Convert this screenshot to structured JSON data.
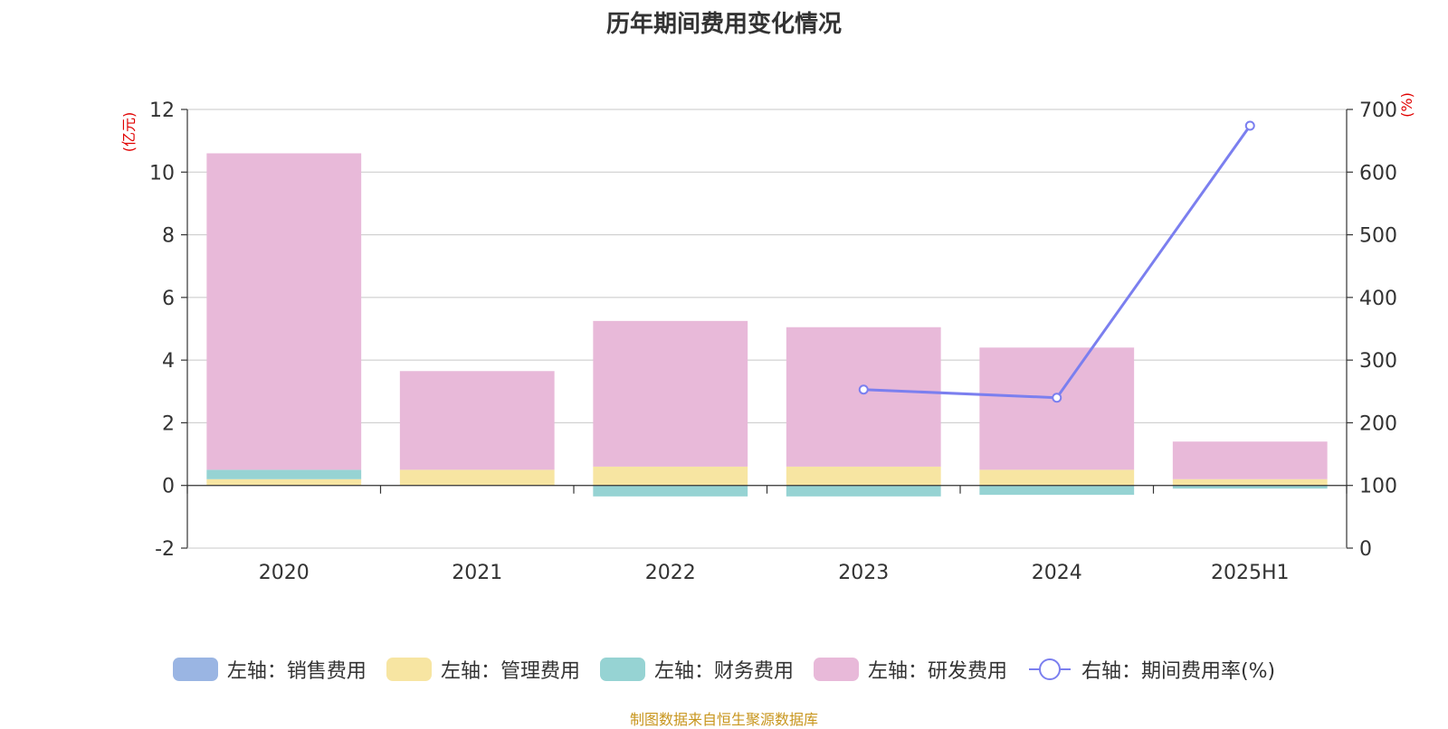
{
  "title": "历年期间费用变化情况",
  "source": "制图数据来自恒生聚源数据库",
  "left_axis_unit": "(亿元)",
  "right_axis_unit": "(%)",
  "colors": {
    "sales": "#9ab5e3",
    "admin": "#f7e5a2",
    "finance": "#96d3d3",
    "rd": "#e8b9d9",
    "rate": "#7b7fef"
  },
  "legend": [
    {
      "label": "左轴：销售费用",
      "type": "bar",
      "color": "#9ab5e3"
    },
    {
      "label": "左轴：管理费用",
      "type": "bar",
      "color": "#f7e5a2"
    },
    {
      "label": "左轴：财务费用",
      "type": "bar",
      "color": "#96d3d3"
    },
    {
      "label": "左轴：研发费用",
      "type": "bar",
      "color": "#e8b9d9"
    },
    {
      "label": "右轴：期间费用率(%)",
      "type": "line",
      "color": "#7b7fef"
    }
  ],
  "chart_data": {
    "type": "bar",
    "stacked": true,
    "categories": [
      "2020",
      "2021",
      "2022",
      "2023",
      "2024",
      "2025H1"
    ],
    "series": [
      {
        "name": "左轴：销售费用",
        "axis": "left",
        "values": [
          0.0,
          0.0,
          0.0,
          0.0,
          0.0,
          0.0
        ]
      },
      {
        "name": "左轴：管理费用",
        "axis": "left",
        "values": [
          0.2,
          0.5,
          0.6,
          0.6,
          0.5,
          0.2
        ]
      },
      {
        "name": "左轴：财务费用",
        "axis": "left",
        "values": [
          0.3,
          0.0,
          -0.35,
          -0.35,
          -0.3,
          -0.1
        ]
      },
      {
        "name": "左轴：研发费用",
        "axis": "left",
        "values": [
          10.1,
          3.15,
          4.65,
          4.45,
          3.9,
          1.2
        ]
      },
      {
        "name": "右轴：期间费用率(%)",
        "axis": "right",
        "type": "line",
        "values": [
          null,
          null,
          null,
          253,
          240,
          674
        ]
      }
    ],
    "left_axis": {
      "min": -2,
      "max": 12,
      "ticks": [
        -2,
        0,
        2,
        4,
        6,
        8,
        10,
        12
      ]
    },
    "right_axis": {
      "min": 0,
      "max": 700,
      "ticks": [
        0,
        100,
        200,
        300,
        400,
        500,
        600,
        700
      ]
    },
    "grid": true,
    "legend_position": "bottom"
  }
}
